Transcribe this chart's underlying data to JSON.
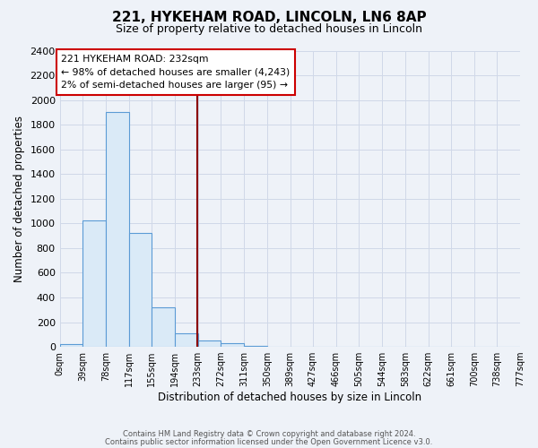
{
  "title_line1": "221, HYKEHAM ROAD, LINCOLN, LN6 8AP",
  "title_line2": "Size of property relative to detached houses in Lincoln",
  "xlabel": "Distribution of detached houses by size in Lincoln",
  "ylabel": "Number of detached properties",
  "bar_edges": [
    0,
    39,
    78,
    117,
    155,
    194,
    233,
    272,
    311,
    350,
    389,
    427,
    466,
    505,
    544,
    583,
    622,
    661,
    700,
    738,
    777
  ],
  "bar_heights": [
    20,
    1025,
    1900,
    920,
    320,
    110,
    50,
    30,
    10,
    0,
    0,
    0,
    0,
    0,
    0,
    0,
    0,
    0,
    0,
    0
  ],
  "property_size": 232,
  "vline_color": "#8b0000",
  "bar_facecolor": "#daeaf7",
  "bar_edgecolor": "#5b9bd5",
  "ylim": [
    0,
    2400
  ],
  "yticks": [
    0,
    200,
    400,
    600,
    800,
    1000,
    1200,
    1400,
    1600,
    1800,
    2000,
    2200,
    2400
  ],
  "xtick_labels": [
    "0sqm",
    "39sqm",
    "78sqm",
    "117sqm",
    "155sqm",
    "194sqm",
    "233sqm",
    "272sqm",
    "311sqm",
    "350sqm",
    "389sqm",
    "427sqm",
    "466sqm",
    "505sqm",
    "544sqm",
    "583sqm",
    "622sqm",
    "661sqm",
    "700sqm",
    "738sqm",
    "777sqm"
  ],
  "annotation_title": "221 HYKEHAM ROAD: 232sqm",
  "annotation_line2": "← 98% of detached houses are smaller (4,243)",
  "annotation_line3": "2% of semi-detached houses are larger (95) →",
  "annotation_box_facecolor": "#ffffff",
  "annotation_box_edgecolor": "#cc0000",
  "background_color": "#eef2f8",
  "plot_bg_color": "#eef2f8",
  "grid_color": "#d0d8e8",
  "footer_line1": "Contains HM Land Registry data © Crown copyright and database right 2024.",
  "footer_line2": "Contains public sector information licensed under the Open Government Licence v3.0."
}
